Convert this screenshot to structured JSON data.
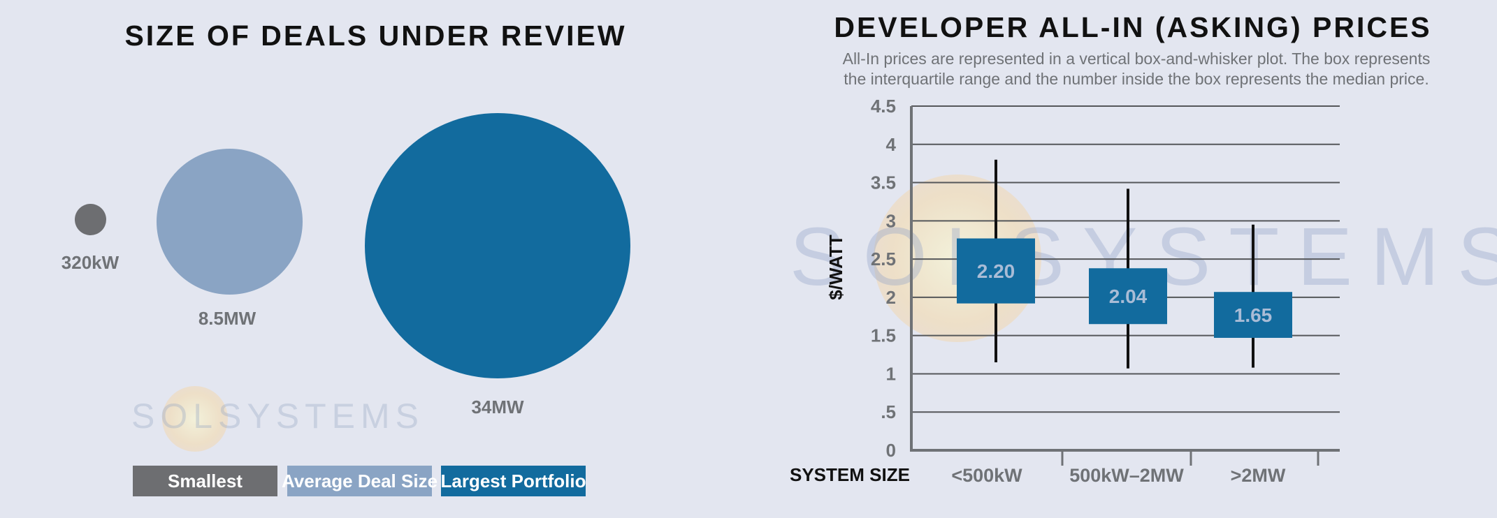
{
  "left": {
    "title": "SIZE OF DEALS UNDER REVIEW",
    "bubbles": [
      {
        "label": "320kW",
        "color": "#6d6e71"
      },
      {
        "label": "8.5MW",
        "color": "#8aa4c4"
      },
      {
        "label": "34MW",
        "color": "#126b9e"
      }
    ],
    "legend": [
      {
        "label": "Smallest",
        "color": "#6d6e71"
      },
      {
        "label": "Average Deal Size",
        "color": "#8aa4c4"
      },
      {
        "label": "Largest Portfolio",
        "color": "#126b9e"
      }
    ],
    "watermark": "SOLSYSTEMS"
  },
  "right": {
    "title": "DEVELOPER ALL-IN (ASKING) PRICES",
    "subtitle_line1": "All-In prices are represented in a vertical box-and-whisker plot. The box represents",
    "subtitle_line2": "the interquartile range and the number inside the box represents the median price.",
    "watermark": "SOLSYSTEMS"
  },
  "chart_data": [
    {
      "type": "bubble",
      "title": "SIZE OF DEALS UNDER REVIEW",
      "categories": [
        "Smallest",
        "Average Deal Size",
        "Largest Portfolio"
      ],
      "values_kw": [
        320,
        8500,
        34000
      ],
      "labels": [
        "320kW",
        "8.5MW",
        "34MW"
      ]
    },
    {
      "type": "box",
      "title": "DEVELOPER ALL-IN (ASKING) PRICES",
      "xlabel": "SYSTEM SIZE",
      "ylabel": "$/WATT",
      "ylim": [
        0,
        4.5
      ],
      "yticks": [
        0,
        0.5,
        1,
        1.5,
        2,
        2.5,
        3,
        3.5,
        4,
        4.5
      ],
      "ytick_labels": [
        "0",
        ".5",
        "1",
        "1.5",
        "2",
        "2.5",
        "3",
        "3.5",
        "4",
        "4.5"
      ],
      "categories": [
        "<500kW",
        "500kW–2MW",
        ">2MW"
      ],
      "series": [
        {
          "category": "<500kW",
          "min": 1.15,
          "q1": 1.92,
          "median": 2.2,
          "q3": 2.77,
          "max": 3.8,
          "median_label": "2.20"
        },
        {
          "category": "500kW–2MW",
          "min": 1.07,
          "q1": 1.65,
          "median": 2.04,
          "q3": 2.38,
          "max": 3.42,
          "median_label": "2.04"
        },
        {
          "category": ">2MW",
          "min": 1.08,
          "q1": 1.47,
          "median": 1.65,
          "q3": 2.07,
          "max": 2.95,
          "median_label": "1.65"
        }
      ],
      "box_color": "#126b9e",
      "median_text_color": "#a9bcd6",
      "grid": true
    }
  ]
}
